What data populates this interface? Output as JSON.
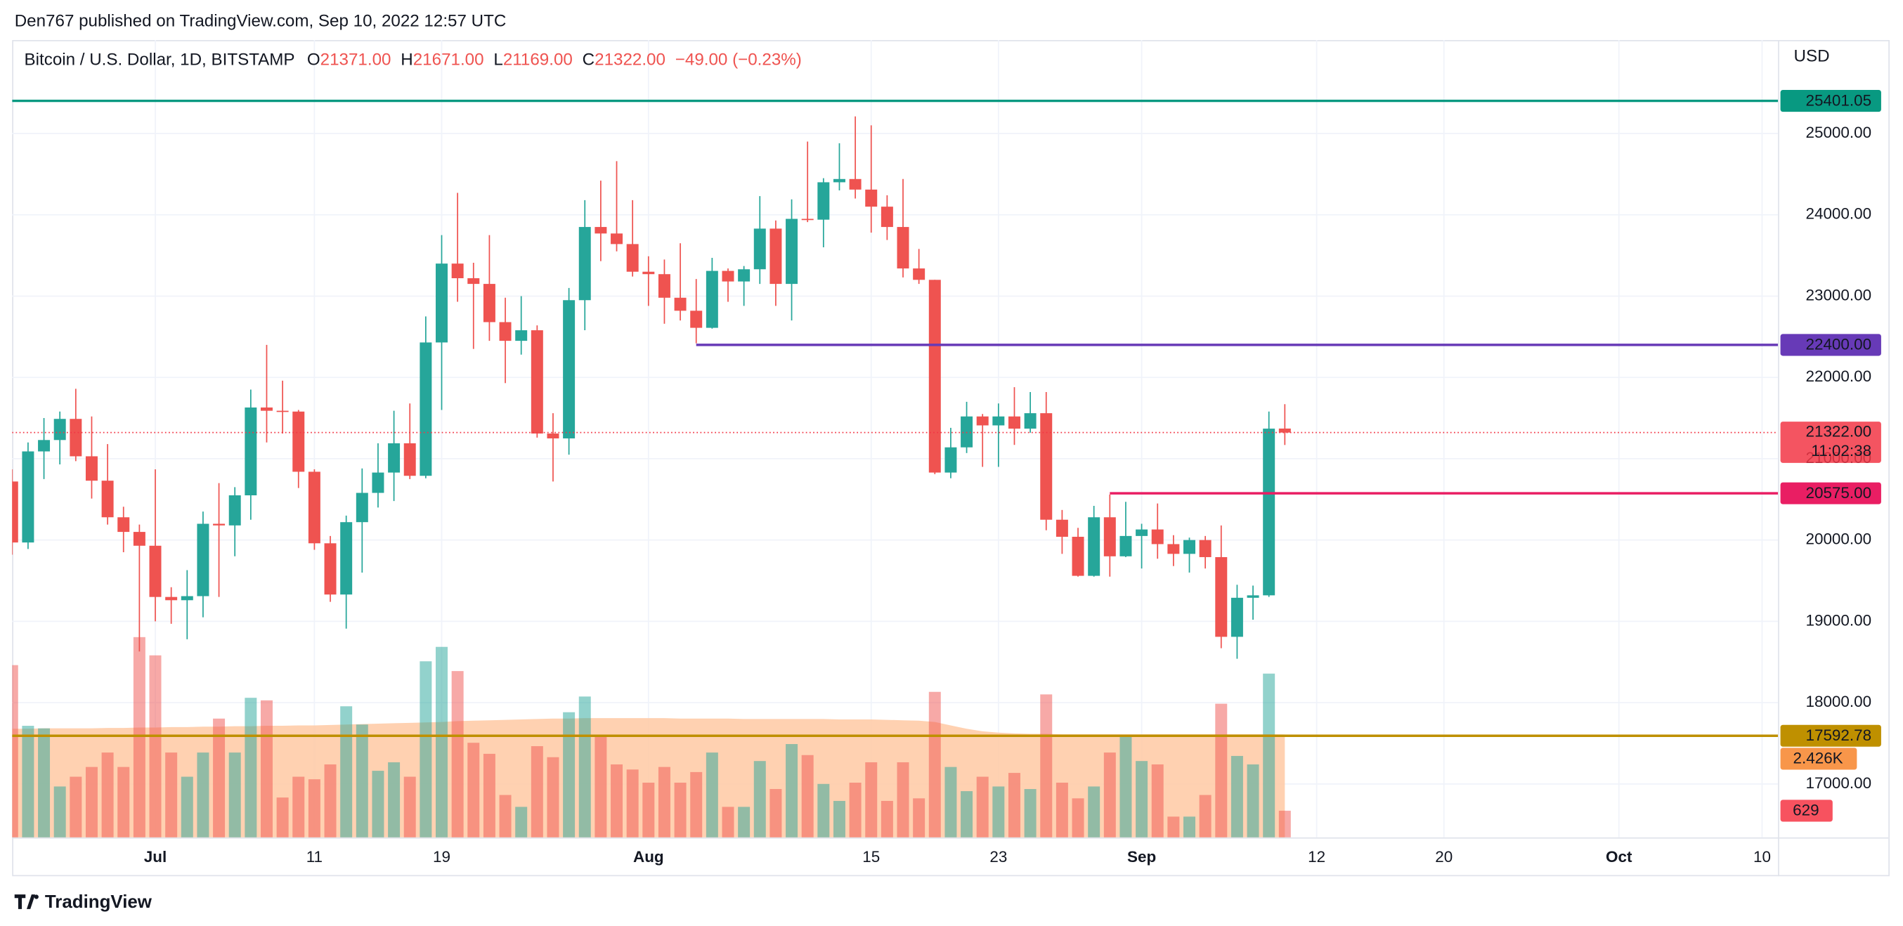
{
  "header": {
    "publisher": "Den767 published on TradingView.com, Sep 10, 2022 12:57 UTC",
    "brand": "TradingView"
  },
  "chart_data": {
    "type": "candlestick",
    "title": "Bitcoin / U.S. Dollar, 1D, BITSTAMP",
    "legend": [
      {
        "key": "O",
        "value": "21371.00"
      },
      {
        "key": "H",
        "value": "21671.00"
      },
      {
        "key": "L",
        "value": "21169.00"
      },
      {
        "key": "C",
        "value": "21322.00"
      }
    ],
    "change": "−49.00 (−0.23%)",
    "y_label": "USD",
    "x": [
      "2022-06-22",
      "2022-06-23",
      "2022-06-24",
      "2022-06-25",
      "2022-06-26",
      "2022-06-27",
      "2022-06-28",
      "2022-06-29",
      "2022-06-30",
      "2022-07-01",
      "2022-07-02",
      "2022-07-03",
      "2022-07-04",
      "2022-07-05",
      "2022-07-06",
      "2022-07-07",
      "2022-07-08",
      "2022-07-09",
      "2022-07-10",
      "2022-07-11",
      "2022-07-12",
      "2022-07-13",
      "2022-07-14",
      "2022-07-15",
      "2022-07-16",
      "2022-07-17",
      "2022-07-18",
      "2022-07-19",
      "2022-07-20",
      "2022-07-21",
      "2022-07-22",
      "2022-07-23",
      "2022-07-24",
      "2022-07-25",
      "2022-07-26",
      "2022-07-27",
      "2022-07-28",
      "2022-07-29",
      "2022-07-30",
      "2022-07-31",
      "2022-08-01",
      "2022-08-02",
      "2022-08-03",
      "2022-08-04",
      "2022-08-05",
      "2022-08-06",
      "2022-08-07",
      "2022-08-08",
      "2022-08-09",
      "2022-08-10",
      "2022-08-11",
      "2022-08-12",
      "2022-08-13",
      "2022-08-14",
      "2022-08-15",
      "2022-08-16",
      "2022-08-17",
      "2022-08-18",
      "2022-08-19",
      "2022-08-20",
      "2022-08-21",
      "2022-08-22",
      "2022-08-23",
      "2022-08-24",
      "2022-08-25",
      "2022-08-26",
      "2022-08-27",
      "2022-08-28",
      "2022-08-29",
      "2022-08-30",
      "2022-08-31",
      "2022-09-01",
      "2022-09-02",
      "2022-09-03",
      "2022-09-04",
      "2022-09-05",
      "2022-09-06",
      "2022-09-07",
      "2022-09-08",
      "2022-09-09",
      "2022-09-10"
    ],
    "open": [
      20720,
      19970,
      21090,
      21230,
      21490,
      21030,
      20730,
      20280,
      20100,
      19930,
      19300,
      19260,
      19310,
      20200,
      20180,
      20550,
      21630,
      21590,
      21580,
      20840,
      19960,
      19330,
      20220,
      20580,
      20830,
      21190,
      20790,
      22430,
      23400,
      23220,
      23150,
      22680,
      22450,
      22580,
      21310,
      21250,
      22950,
      23850,
      23770,
      23640,
      23300,
      23270,
      22980,
      22820,
      22610,
      23310,
      23180,
      23330,
      23830,
      23150,
      23950,
      23940,
      24400,
      24440,
      24310,
      24100,
      23850,
      23340,
      23200,
      20830,
      21140,
      21520,
      21410,
      21520,
      21370,
      21560,
      20250,
      20040,
      19560,
      20280,
      19800,
      20050,
      20130,
      19950,
      19830,
      20000,
      19790,
      18810,
      19290,
      19320,
      21371
    ],
    "high": [
      20870,
      21200,
      21500,
      21580,
      21860,
      21520,
      21180,
      20410,
      20190,
      20870,
      19420,
      19630,
      20350,
      20700,
      20650,
      21850,
      22400,
      21960,
      21600,
      20870,
      20050,
      20300,
      20880,
      21190,
      21590,
      21680,
      22750,
      23750,
      24270,
      23410,
      23750,
      22980,
      23000,
      22640,
      21560,
      23100,
      24180,
      24420,
      24660,
      24180,
      23490,
      23450,
      23650,
      23210,
      23470,
      23340,
      23370,
      24230,
      23930,
      24190,
      24900,
      24450,
      24880,
      25210,
      25100,
      24240,
      24440,
      23580,
      23200,
      21380,
      21700,
      21550,
      21680,
      21880,
      21820,
      21820,
      20370,
      20150,
      20420,
      20560,
      20470,
      20200,
      20450,
      20060,
      20030,
      20050,
      20180,
      19450,
      19440,
      21580,
      21671
    ],
    "low": [
      19820,
      19890,
      20750,
      20930,
      20970,
      20510,
      20190,
      19850,
      18630,
      19000,
      18970,
      18780,
      19050,
      19300,
      19800,
      20250,
      21200,
      21310,
      20640,
      19880,
      19240,
      18910,
      19600,
      20400,
      20480,
      20750,
      20760,
      21600,
      22930,
      22350,
      22450,
      21930,
      22280,
      21260,
      20720,
      21050,
      22580,
      23430,
      23550,
      23240,
      22880,
      22660,
      22700,
      22420,
      22600,
      22930,
      22880,
      23150,
      22880,
      22700,
      23910,
      23600,
      24300,
      24200,
      23780,
      23690,
      23230,
      23150,
      20810,
      20760,
      21070,
      20900,
      20900,
      21170,
      21320,
      20120,
      19830,
      19550,
      19550,
      19550,
      19790,
      19650,
      19770,
      19680,
      19600,
      19650,
      18670,
      18540,
      19020,
      19300,
      21169
    ],
    "close": [
      19970,
      21090,
      21230,
      21490,
      21030,
      20730,
      20280,
      20100,
      19930,
      19300,
      19260,
      19310,
      20200,
      20180,
      20550,
      21630,
      21590,
      21580,
      20840,
      19960,
      19330,
      20220,
      20580,
      20830,
      21190,
      20790,
      22430,
      23400,
      23220,
      23150,
      22680,
      22450,
      22580,
      21310,
      21250,
      22950,
      23850,
      23770,
      23640,
      23300,
      23270,
      22980,
      22820,
      22610,
      23310,
      23180,
      23330,
      23830,
      23150,
      23950,
      23940,
      24400,
      24440,
      24310,
      24100,
      23850,
      23340,
      23200,
      20830,
      21140,
      21520,
      21410,
      21520,
      21370,
      21560,
      20250,
      20040,
      19560,
      20280,
      19800,
      20050,
      20130,
      19950,
      19830,
      20000,
      19790,
      18810,
      19290,
      19320,
      21370,
      21322
    ],
    "volume": [
      4060,
      2630,
      2570,
      1200,
      1430,
      1660,
      2000,
      1660,
      4720,
      4290,
      2000,
      1430,
      2000,
      2800,
      2000,
      3290,
      3230,
      940,
      1430,
      1370,
      1720,
      3090,
      2660,
      1570,
      1770,
      1430,
      4150,
      4490,
      3920,
      2230,
      1970,
      1000,
      720,
      2150,
      1890,
      2950,
      3320,
      2370,
      1720,
      1600,
      1290,
      1660,
      1290,
      1540,
      2000,
      720,
      720,
      1800,
      1140,
      2200,
      1940,
      1260,
      860,
      1290,
      1770,
      860,
      1770,
      920,
      3430,
      1660,
      1090,
      1430,
      1200,
      1520,
      1140,
      3370,
      1290,
      920,
      1200,
      2000,
      2370,
      1800,
      1720,
      490,
      490,
      1000,
      3150,
      1920,
      1720,
      3860,
      629
    ],
    "volume_ma": [
      2560,
      2560,
      2570,
      2570,
      2570,
      2570,
      2580,
      2580,
      2590,
      2590,
      2600,
      2600,
      2610,
      2610,
      2620,
      2620,
      2630,
      2630,
      2640,
      2640,
      2650,
      2660,
      2670,
      2680,
      2690,
      2700,
      2710,
      2720,
      2740,
      2750,
      2760,
      2770,
      2780,
      2790,
      2800,
      2800,
      2810,
      2810,
      2810,
      2810,
      2810,
      2810,
      2800,
      2800,
      2800,
      2800,
      2790,
      2790,
      2790,
      2790,
      2790,
      2790,
      2780,
      2780,
      2780,
      2770,
      2760,
      2750,
      2720,
      2640,
      2560,
      2500,
      2470,
      2450,
      2440,
      2440,
      2430,
      2430,
      2430,
      2430,
      2430,
      2430,
      2430,
      2430,
      2430,
      2430,
      2430,
      2430,
      2430,
      2430,
      2426
    ],
    "volume_ma_label": "2.426K",
    "up_color": "#26a69a",
    "down_color": "#ef5350",
    "volume_ma_color": "#ffc9a3",
    "xlim": [
      "2022-06-22",
      "2022-10-11"
    ],
    "ylim": [
      16343,
      26149
    ],
    "volume_ylim": [
      0,
      18790
    ],
    "xticks": [
      {
        "value": "2022-07-01",
        "label": "Jul"
      },
      {
        "value": "2022-07-11",
        "label": "11"
      },
      {
        "value": "2022-07-19",
        "label": "19"
      },
      {
        "value": "2022-08-01",
        "label": "Aug"
      },
      {
        "value": "2022-08-15",
        "label": "15"
      },
      {
        "value": "2022-08-23",
        "label": "23"
      },
      {
        "value": "2022-09-01",
        "label": "Sep"
      },
      {
        "value": "2022-09-12",
        "label": "12"
      },
      {
        "value": "2022-09-20",
        "label": "20"
      },
      {
        "value": "2022-10-01",
        "label": "Oct"
      },
      {
        "value": "2022-10-10",
        "label": "10"
      }
    ],
    "yticks": [
      {
        "value": 17000,
        "label": "17000.00"
      },
      {
        "value": 18000,
        "label": "18000.00"
      },
      {
        "value": 19000,
        "label": "19000.00"
      },
      {
        "value": 20000,
        "label": "20000.00"
      },
      {
        "value": 21000,
        "label": "21000.00"
      },
      {
        "value": 22000,
        "label": "22000.00"
      },
      {
        "value": 23000,
        "label": "23000.00"
      },
      {
        "value": 24000,
        "label": "24000.00"
      },
      {
        "value": 25000,
        "label": "25000.00"
      }
    ],
    "grid": true,
    "price_lines": [
      {
        "value": 25401.05,
        "label": "25401.05",
        "color": "#089981"
      },
      {
        "value": 22400,
        "label": "22400.00",
        "color": "#673ab7",
        "from": "2022-08-04"
      },
      {
        "value": 20575,
        "label": "20575.00",
        "color": "#e91e63",
        "from": "2022-08-30"
      },
      {
        "value": 17592.78,
        "label": "17592.78",
        "color": "#bf9000"
      }
    ],
    "last_price": {
      "value": 21322,
      "label": "21322.00",
      "countdown": "11:02:38",
      "color": "#f23645"
    }
  }
}
